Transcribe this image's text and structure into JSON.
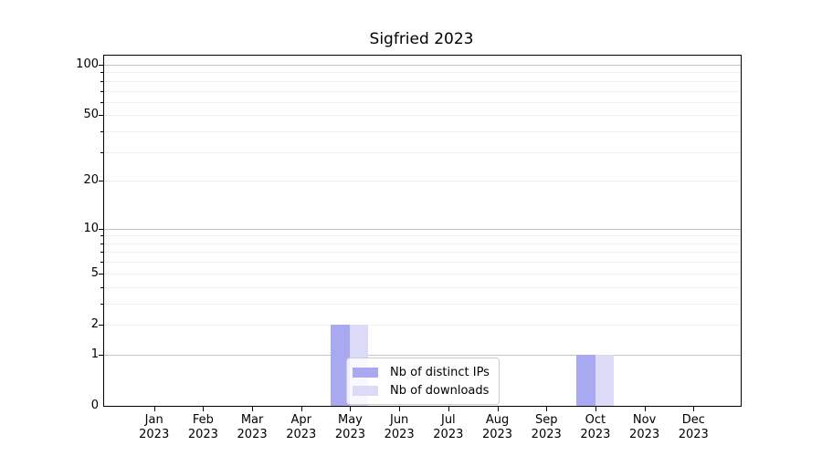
{
  "chart_data": {
    "type": "bar",
    "title": "Sigfried 2023",
    "categories": [
      {
        "month": "Jan",
        "year": "2023"
      },
      {
        "month": "Feb",
        "year": "2023"
      },
      {
        "month": "Mar",
        "year": "2023"
      },
      {
        "month": "Apr",
        "year": "2023"
      },
      {
        "month": "May",
        "year": "2023"
      },
      {
        "month": "Jun",
        "year": "2023"
      },
      {
        "month": "Jul",
        "year": "2023"
      },
      {
        "month": "Aug",
        "year": "2023"
      },
      {
        "month": "Sep",
        "year": "2023"
      },
      {
        "month": "Oct",
        "year": "2023"
      },
      {
        "month": "Nov",
        "year": "2023"
      },
      {
        "month": "Dec",
        "year": "2023"
      }
    ],
    "series": [
      {
        "name": "Nb of distinct IPs",
        "color": "#a9a9f1",
        "values": [
          0,
          0,
          0,
          0,
          2,
          0,
          0,
          0,
          0,
          1,
          0,
          0
        ]
      },
      {
        "name": "Nb of downloads",
        "color": "#dbdbf8",
        "values": [
          0,
          0,
          0,
          0,
          2,
          0,
          0,
          0,
          0,
          1,
          0,
          0
        ]
      }
    ],
    "yscale": "log1p",
    "ylim": [
      0,
      113
    ],
    "yticks": [
      {
        "value": 0,
        "label": "0"
      },
      {
        "value": 1,
        "label": "1"
      },
      {
        "value": 2,
        "label": "2"
      },
      {
        "value": 5,
        "label": "5"
      },
      {
        "value": 10,
        "label": "10"
      },
      {
        "value": 20,
        "label": "20"
      },
      {
        "value": 50,
        "label": "50"
      },
      {
        "value": 100,
        "label": "100"
      }
    ],
    "yticks_major_grid": [
      1,
      10,
      100
    ],
    "yticks_minor": [
      2,
      3,
      4,
      5,
      6,
      7,
      8,
      9,
      20,
      30,
      40,
      50,
      60,
      70,
      80,
      90
    ],
    "grid": "horizontal",
    "legend_position": "lower-center",
    "colors": {
      "grid_major": "#c3c3c3",
      "grid_minor": "#f0f0f0",
      "spine": "#000000",
      "text": "#000000",
      "background": "#ffffff"
    }
  }
}
